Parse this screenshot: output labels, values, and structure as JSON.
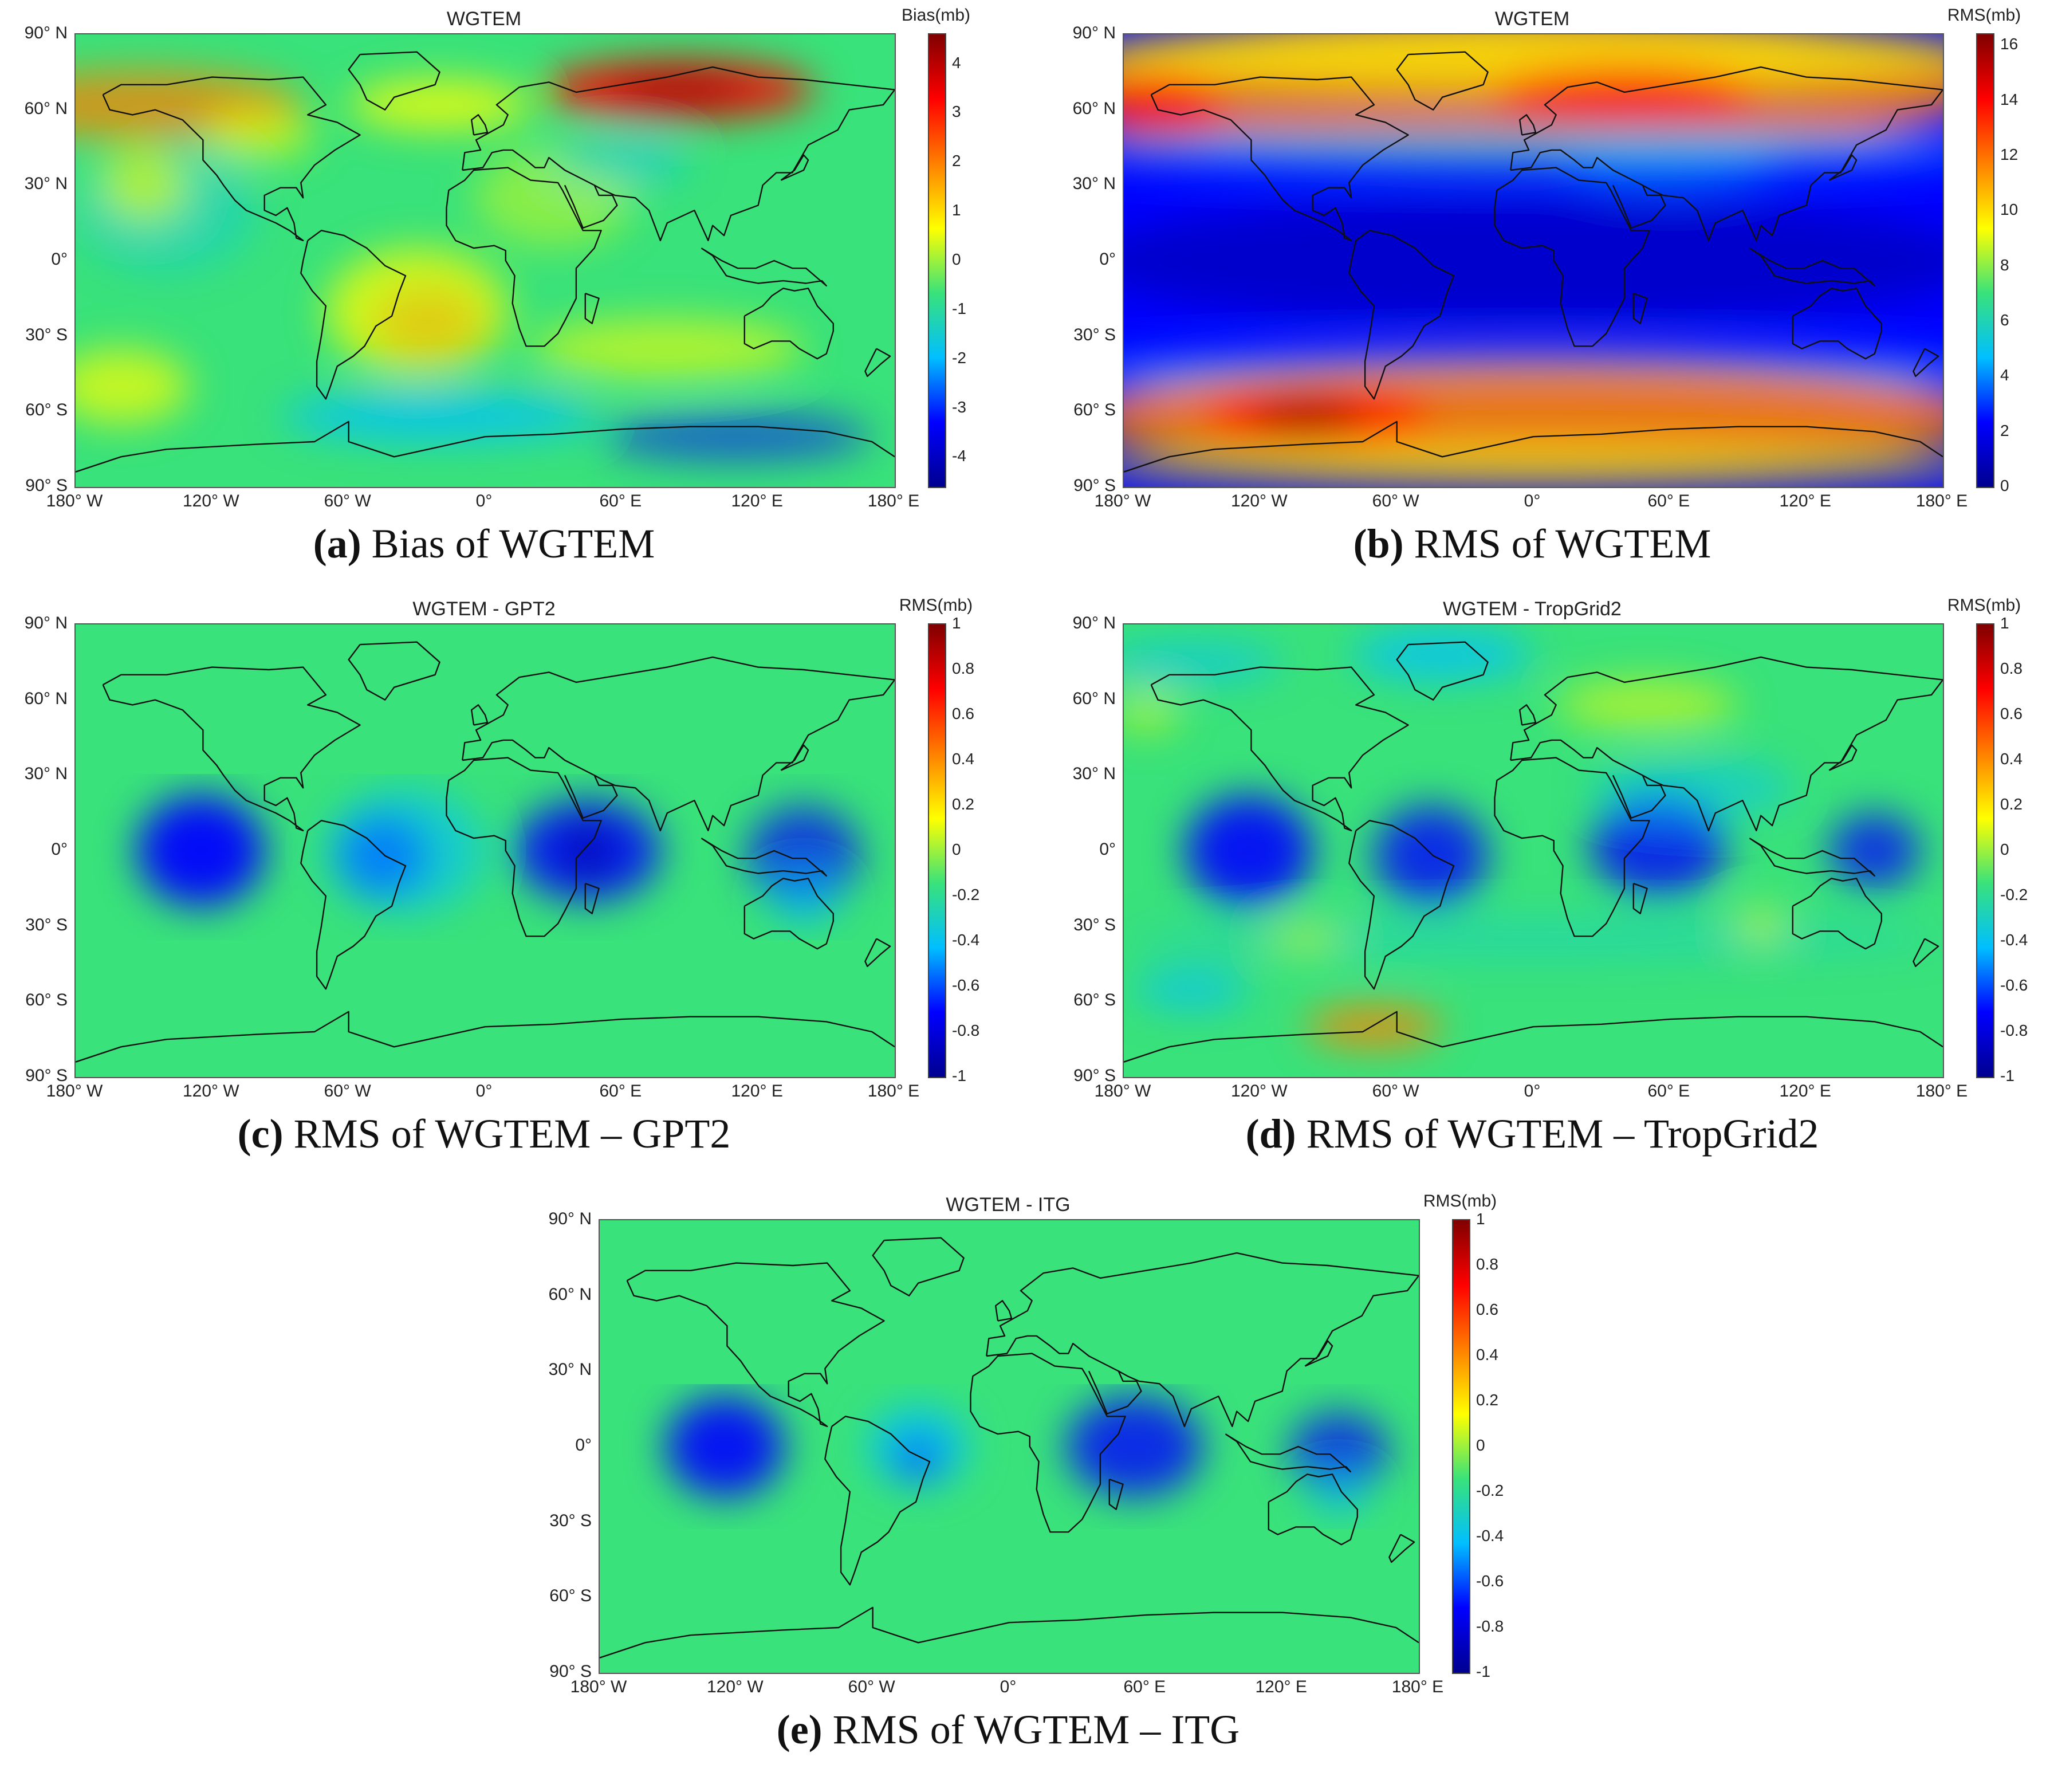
{
  "figure": {
    "panels": [
      {
        "id": "a",
        "map_title": "WGTEM",
        "colorbar_unit": "Bias(mb)",
        "colorbar_ticks": [
          "4",
          "3",
          "2",
          "1",
          "0",
          "-1",
          "-2",
          "-3",
          "-4"
        ],
        "colorbar_range": [
          -4.6,
          4.6
        ],
        "caption_letter": "(a)",
        "caption_text": " Bias of WGTEM",
        "field": "bias"
      },
      {
        "id": "b",
        "map_title": "WGTEM",
        "colorbar_unit": "RMS(mb)",
        "colorbar_ticks": [
          "16",
          "14",
          "12",
          "10",
          "8",
          "6",
          "4",
          "2",
          "0"
        ],
        "colorbar_range": [
          0,
          16.4
        ],
        "caption_letter": "(b)",
        "caption_text": " RMS of WGTEM",
        "field": "rms"
      },
      {
        "id": "c",
        "map_title": "WGTEM - GPT2",
        "colorbar_unit": "RMS(mb)",
        "colorbar_ticks": [
          "1",
          "0.8",
          "0.6",
          "0.4",
          "0.2",
          "0",
          "-0.2",
          "-0.4",
          "-0.6",
          "-0.8",
          "-1"
        ],
        "colorbar_range": [
          -1,
          1
        ],
        "caption_letter": "(c)",
        "caption_text": " RMS of WGTEM – GPT2",
        "field": "gpt2"
      },
      {
        "id": "d",
        "map_title": "WGTEM - TropGrid2",
        "colorbar_unit": "RMS(mb)",
        "colorbar_ticks": [
          "1",
          "0.8",
          "0.6",
          "0.4",
          "0.2",
          "0",
          "-0.2",
          "-0.4",
          "-0.6",
          "-0.8",
          "-1"
        ],
        "colorbar_range": [
          -1,
          1
        ],
        "caption_letter": "(d)",
        "caption_text": " RMS of WGTEM – TropGrid2",
        "field": "tropgrid2"
      },
      {
        "id": "e",
        "map_title": "WGTEM - ITG",
        "colorbar_unit": "RMS(mb)",
        "colorbar_ticks": [
          "1",
          "0.8",
          "0.6",
          "0.4",
          "0.2",
          "0",
          "-0.2",
          "-0.4",
          "-0.6",
          "-0.8",
          "-1"
        ],
        "colorbar_range": [
          -1,
          1
        ],
        "caption_letter": "(e)",
        "caption_text": " RMS of WGTEM – ITG",
        "field": "itg"
      }
    ],
    "lat_labels": [
      "90° N",
      "60° N",
      "30° N",
      "0°",
      "30° S",
      "60° S",
      "90° S"
    ],
    "lon_labels": [
      "180° W",
      "120° W",
      "60° W",
      "0°",
      "60° E",
      "120° E",
      "180° E"
    ],
    "colormap": [
      "#00008f",
      "#0000ff",
      "#00bfff",
      "#39e27a",
      "#ffff00",
      "#ff8000",
      "#ff0000",
      "#800000"
    ]
  }
}
